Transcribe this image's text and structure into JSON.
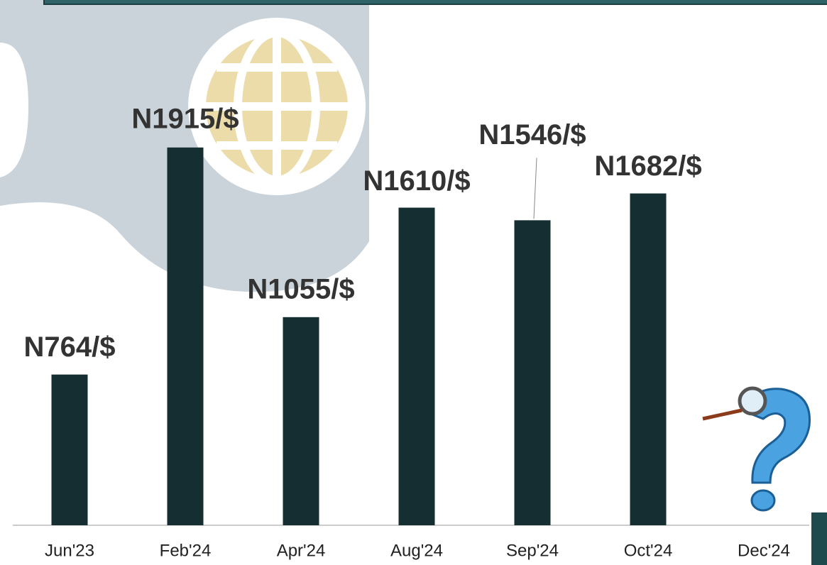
{
  "chart_data": {
    "type": "bar",
    "categories": [
      "Jun'23",
      "Feb'24",
      "Apr'24",
      "Aug'24",
      "Sep'24",
      "Oct'24",
      "Dec'24"
    ],
    "values": [
      764,
      1915,
      1055,
      1610,
      1546,
      1682,
      null
    ],
    "value_labels": [
      "N764/$",
      "N1915/$",
      "N1055/$",
      "N1610/$",
      "N1546/$",
      "N1682/$",
      null
    ],
    "color": "#142e31",
    "ylim": [
      0,
      2400
    ]
  }
}
